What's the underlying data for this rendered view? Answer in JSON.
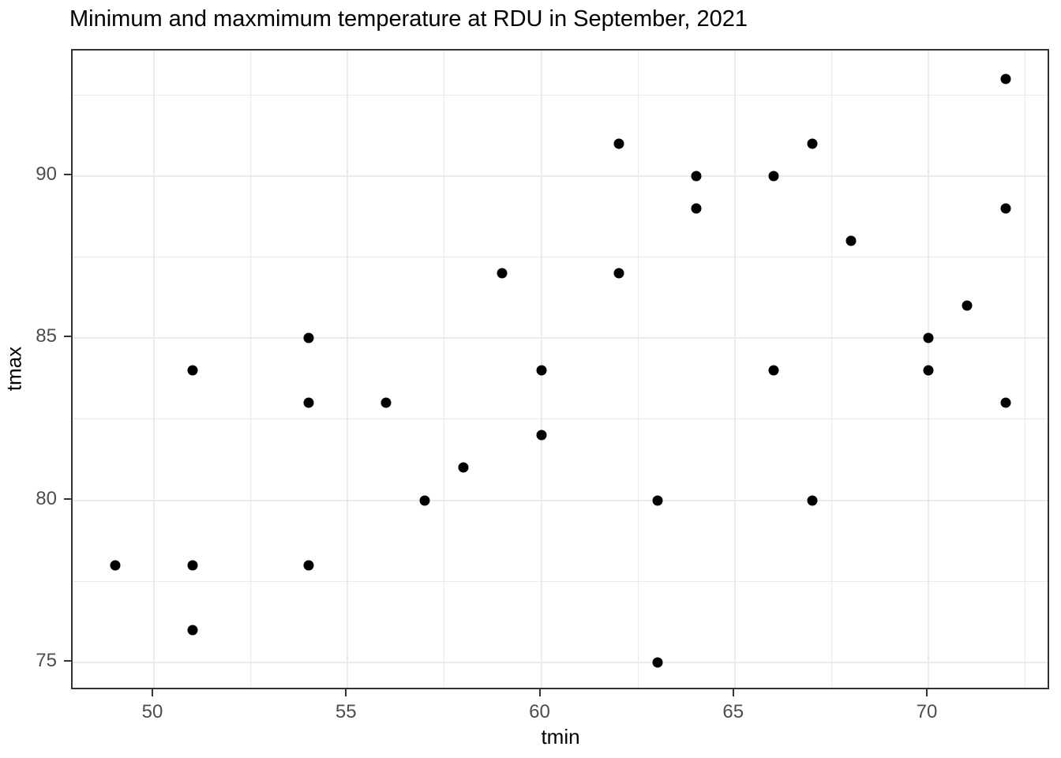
{
  "chart_data": {
    "type": "scatter",
    "title": "Minimum and maxmimum temperature at RDU in September, 2021",
    "xlabel": "tmin",
    "ylabel": "tmax",
    "x_tick_labels": [
      50,
      55,
      60,
      65,
      70
    ],
    "y_tick_labels": [
      75,
      80,
      85,
      90
    ],
    "x_minor_gridlines": [
      52.5,
      57.5,
      62.5,
      67.5,
      72.5
    ],
    "y_minor_gridlines": [
      77.5,
      82.5,
      87.5,
      92.5
    ],
    "xlim": [
      47.9,
      73.16
    ],
    "ylim": [
      74.12,
      93.87
    ],
    "grid": "on",
    "legend": "none",
    "point_color": "#000000",
    "gridline_color": "#ebebeb",
    "panel_border_color": "#333333",
    "tick_label_color": "#4d4d4d",
    "points": [
      [
        49,
        78
      ],
      [
        51,
        76
      ],
      [
        51,
        78
      ],
      [
        51,
        84
      ],
      [
        54,
        78
      ],
      [
        54,
        83
      ],
      [
        54,
        85
      ],
      [
        56,
        83
      ],
      [
        57,
        80
      ],
      [
        58,
        81
      ],
      [
        59,
        87
      ],
      [
        60,
        82
      ],
      [
        60,
        84
      ],
      [
        62,
        87
      ],
      [
        62,
        91
      ],
      [
        63,
        75
      ],
      [
        63,
        80
      ],
      [
        64,
        89
      ],
      [
        64,
        90
      ],
      [
        66,
        84
      ],
      [
        66,
        90
      ],
      [
        67,
        80
      ],
      [
        67,
        91
      ],
      [
        68,
        88
      ],
      [
        70,
        84
      ],
      [
        70,
        85
      ],
      [
        71,
        86
      ],
      [
        72,
        83
      ],
      [
        72,
        89
      ],
      [
        72,
        93
      ]
    ]
  }
}
